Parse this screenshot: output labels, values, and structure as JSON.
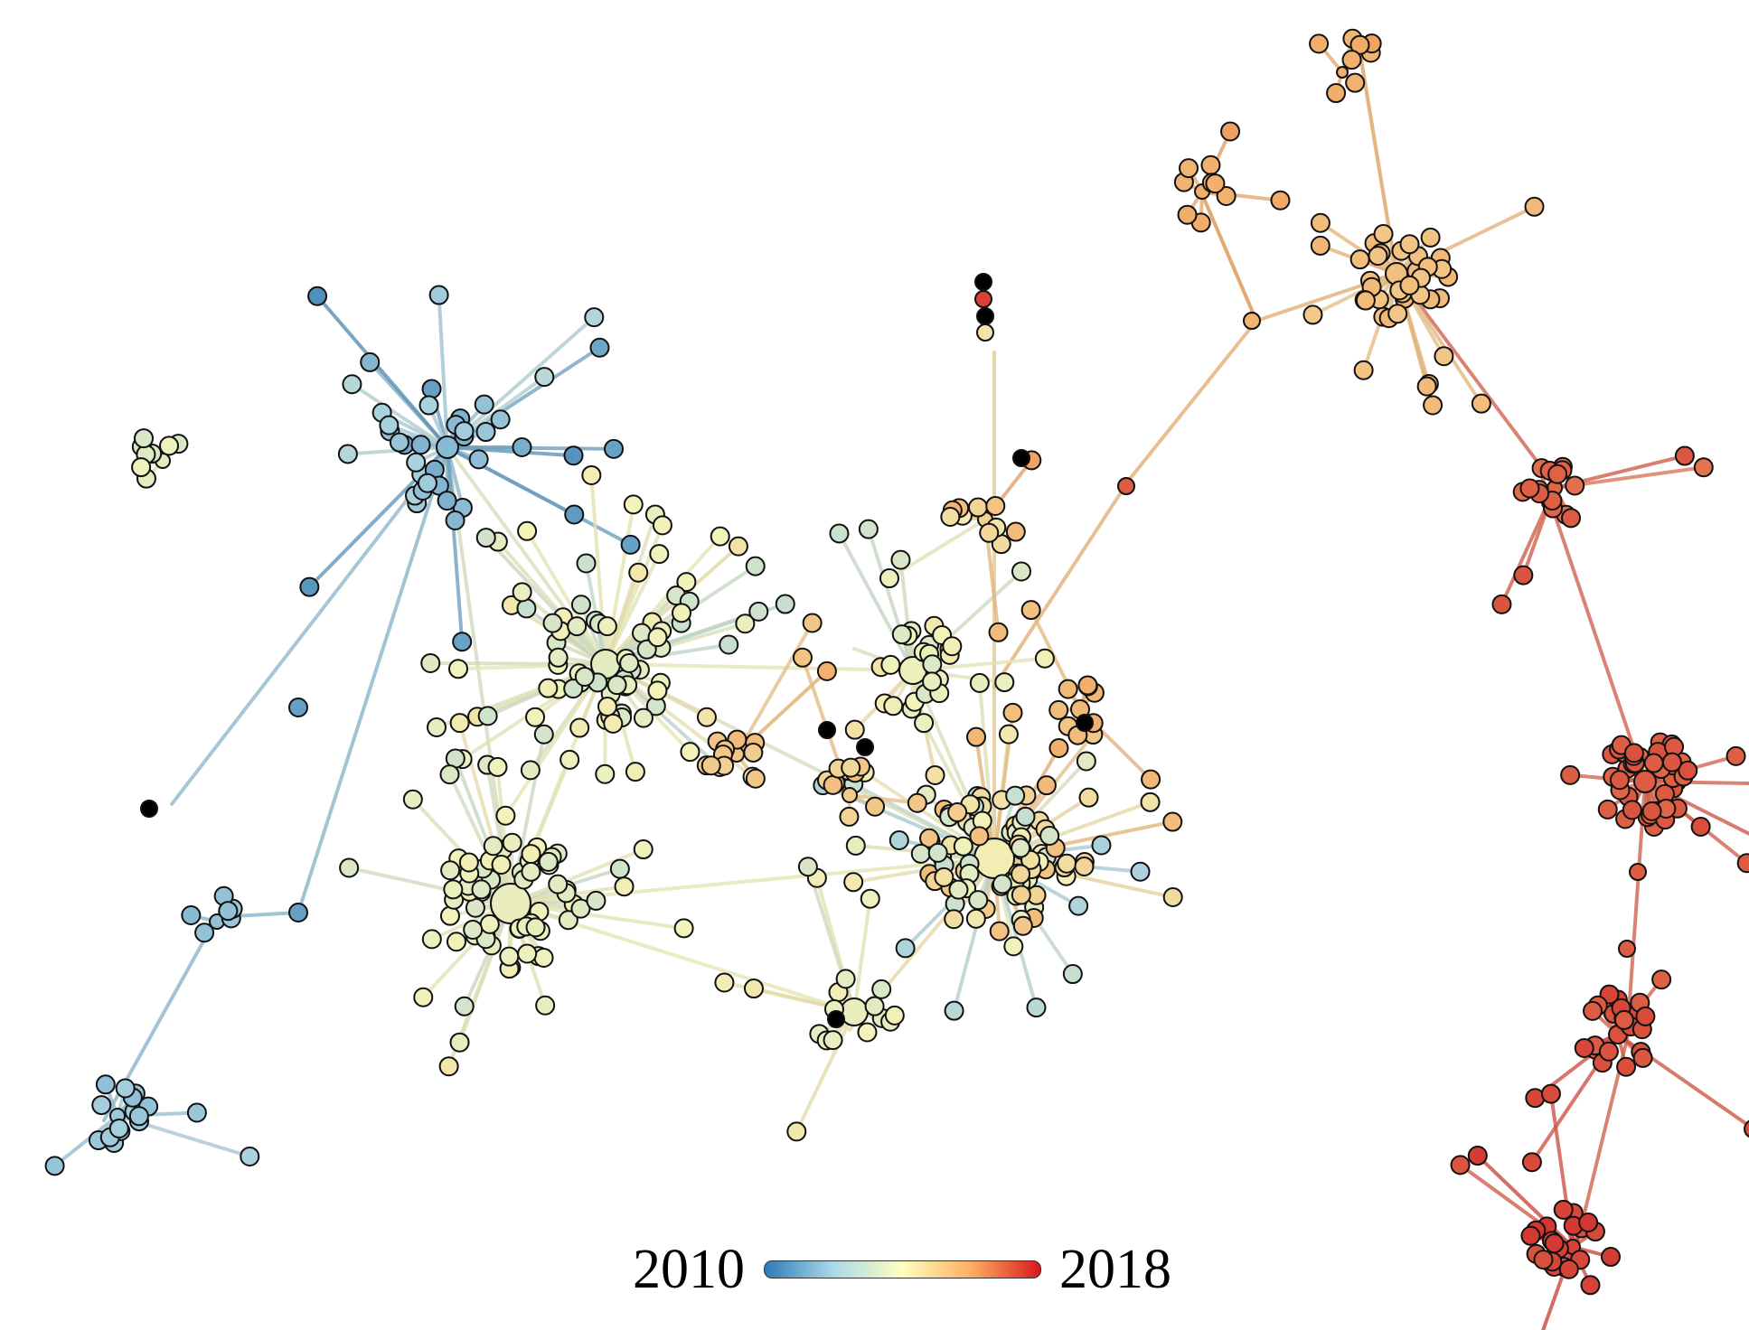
{
  "figure": {
    "description_type": "temporal network graph",
    "colorbar": {
      "min_label": "2010",
      "max_label": "2018",
      "stops": [
        "#2c7bb6",
        "#abd9e9",
        "#ffffbf",
        "#fdae61",
        "#d7191c"
      ]
    },
    "missing_year_color": "#000000"
  }
}
